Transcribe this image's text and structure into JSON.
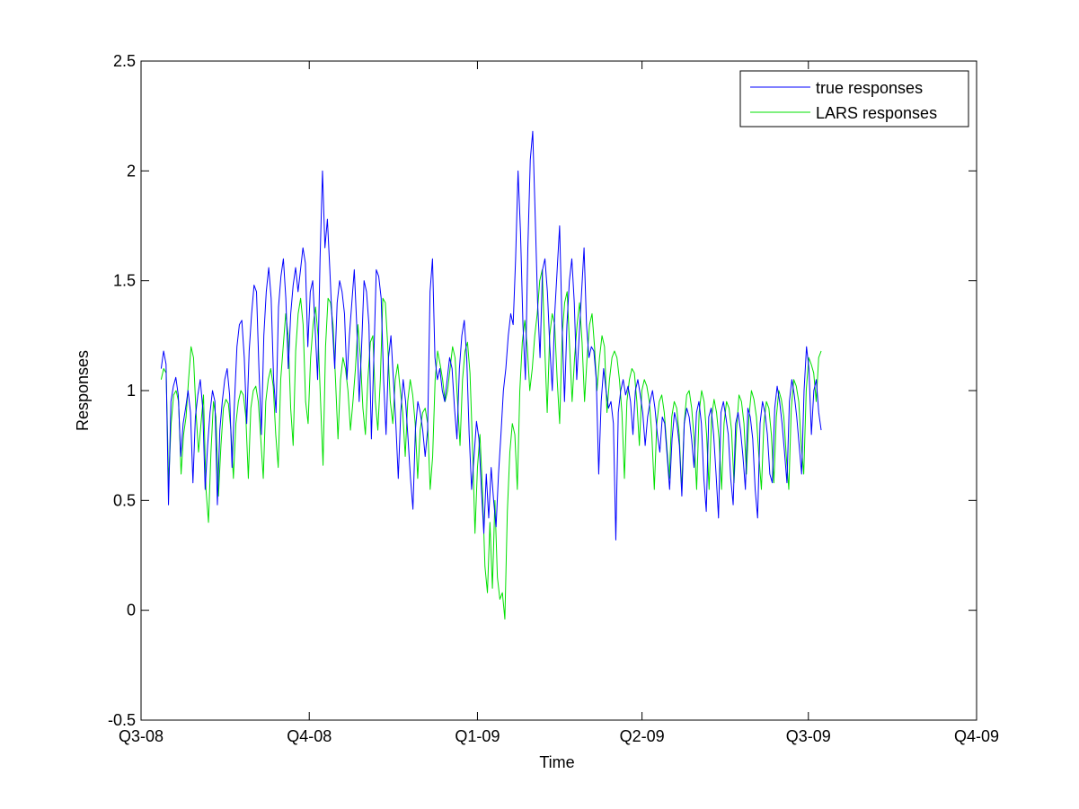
{
  "chart_data": {
    "type": "line",
    "title": "",
    "xlabel": "Time",
    "ylabel": "Responses",
    "xlim": [
      "2008-07-01",
      "2009-10-01"
    ],
    "ylim": [
      -0.5,
      2.5
    ],
    "grid": false,
    "legend_position": "top-right",
    "x_ticks": [
      {
        "label": "Q3-08",
        "date": "2008-07-01"
      },
      {
        "label": "Q4-08",
        "date": "2008-10-01"
      },
      {
        "label": "Q1-09",
        "date": "2009-01-01"
      },
      {
        "label": "Q2-09",
        "date": "2009-04-01"
      },
      {
        "label": "Q3-09",
        "date": "2009-07-01"
      },
      {
        "label": "Q4-09",
        "date": "2009-10-01"
      }
    ],
    "y_ticks": [
      "-0.5",
      "0",
      "0.5",
      "1",
      "1.5",
      "2",
      "2.5"
    ],
    "series_start": "2008-07-12",
    "series_end": "2009-07-08",
    "series": [
      {
        "name": "true responses",
        "color": "#0000ff",
        "values": [
          1.1,
          1.18,
          1.12,
          0.48,
          0.95,
          1.02,
          1.06,
          0.98,
          0.7,
          0.85,
          0.92,
          1.0,
          0.9,
          0.58,
          0.88,
          0.98,
          1.05,
          0.92,
          0.55,
          0.75,
          0.9,
          1.0,
          0.95,
          0.48,
          0.82,
          0.95,
          1.05,
          1.1,
          0.98,
          0.65,
          0.95,
          1.2,
          1.3,
          1.32,
          1.15,
          0.85,
          1.18,
          1.35,
          1.48,
          1.45,
          1.1,
          0.8,
          1.25,
          1.45,
          1.56,
          1.42,
          1.05,
          0.9,
          1.38,
          1.52,
          1.6,
          1.42,
          1.1,
          1.35,
          1.48,
          1.56,
          1.45,
          1.55,
          1.65,
          1.58,
          1.2,
          1.45,
          1.5,
          1.28,
          1.05,
          1.6,
          2.0,
          1.65,
          1.78,
          1.55,
          1.3,
          1.1,
          1.4,
          1.5,
          1.45,
          1.35,
          1.05,
          1.25,
          1.4,
          1.55,
          1.3,
          0.95,
          1.2,
          1.5,
          1.45,
          1.3,
          0.78,
          1.15,
          1.55,
          1.52,
          1.42,
          1.05,
          0.8,
          1.15,
          1.25,
          1.05,
          0.85,
          0.6,
          0.9,
          1.05,
          0.95,
          0.78,
          0.6,
          0.46,
          0.82,
          0.95,
          0.9,
          0.82,
          0.7,
          0.82,
          1.45,
          1.6,
          1.15,
          1.05,
          1.1,
          1.0,
          0.95,
          1.05,
          1.15,
          1.1,
          0.92,
          0.78,
          1.1,
          1.25,
          1.32,
          1.15,
          0.8,
          0.55,
          0.7,
          0.86,
          0.78,
          0.55,
          0.35,
          0.62,
          0.42,
          0.65,
          0.5,
          0.38,
          0.62,
          0.8,
          1.0,
          1.1,
          1.25,
          1.35,
          1.3,
          1.6,
          2.0,
          1.72,
          1.3,
          1.05,
          1.65,
          2.05,
          2.18,
          1.8,
          1.4,
          1.15,
          1.55,
          1.6,
          1.45,
          1.2,
          1.0,
          1.35,
          1.55,
          1.75,
          1.3,
          0.95,
          1.3,
          1.5,
          1.6,
          1.4,
          1.05,
          1.25,
          1.45,
          1.65,
          1.3,
          1.15,
          1.2,
          1.18,
          1.05,
          0.62,
          0.95,
          1.1,
          1.0,
          0.92,
          0.95,
          0.85,
          0.32,
          0.9,
          1.0,
          1.05,
          0.98,
          1.02,
          0.95,
          0.8,
          1.0,
          1.05,
          0.98,
          0.9,
          0.75,
          0.88,
          0.95,
          1.0,
          0.92,
          0.8,
          0.72,
          0.88,
          0.85,
          0.7,
          0.55,
          0.78,
          0.9,
          0.85,
          0.75,
          0.52,
          0.85,
          0.92,
          0.88,
          0.78,
          0.65,
          0.9,
          0.95,
          0.85,
          0.6,
          0.45,
          0.88,
          0.92,
          0.8,
          0.62,
          0.42,
          0.9,
          0.95,
          0.88,
          0.8,
          0.6,
          0.48,
          0.85,
          0.9,
          0.82,
          0.7,
          0.55,
          0.92,
          0.88,
          0.78,
          0.55,
          0.42,
          0.85,
          0.95,
          0.9,
          0.8,
          0.62,
          0.58,
          0.92,
          1.02,
          0.95,
          0.85,
          0.72,
          0.58,
          0.95,
          1.05,
          0.98,
          0.88,
          0.75,
          0.62,
          1.0,
          1.2,
          1.1,
          0.8,
          1.0,
          1.05,
          0.9,
          0.82
        ]
      },
      {
        "name": "LARS responses",
        "color": "#00e000",
        "values": [
          1.05,
          1.1,
          1.08,
          0.58,
          0.85,
          0.98,
          1.0,
          0.95,
          0.62,
          0.8,
          0.88,
          1.05,
          1.2,
          1.15,
          0.9,
          0.72,
          0.85,
          0.98,
          0.55,
          0.4,
          0.72,
          0.95,
          0.88,
          0.52,
          0.75,
          0.92,
          0.96,
          0.94,
          0.82,
          0.6,
          0.85,
          0.95,
          1.0,
          0.98,
          0.88,
          0.6,
          0.92,
          1.0,
          1.02,
          0.95,
          0.78,
          0.6,
          0.95,
          1.05,
          1.1,
          1.02,
          0.8,
          0.65,
          1.05,
          1.2,
          1.35,
          1.25,
          0.92,
          0.75,
          1.18,
          1.35,
          1.42,
          1.3,
          0.95,
          0.85,
          1.15,
          1.3,
          1.38,
          1.25,
          0.95,
          0.66,
          1.2,
          1.42,
          1.4,
          1.3,
          1.05,
          0.78,
          1.05,
          1.15,
          1.1,
          1.0,
          0.82,
          0.95,
          1.1,
          1.3,
          1.15,
          0.92,
          0.8,
          1.05,
          1.22,
          1.25,
          0.95,
          0.82,
          1.05,
          1.42,
          1.4,
          1.2,
          0.95,
          0.85,
          1.05,
          1.12,
          1.0,
          0.9,
          0.7,
          0.95,
          1.05,
          0.98,
          0.85,
          0.6,
          0.82,
          0.9,
          0.92,
          0.85,
          0.55,
          0.7,
          1.05,
          1.18,
          1.12,
          1.05,
          0.95,
          1.0,
          1.1,
          1.2,
          1.15,
          0.95,
          0.75,
          1.05,
          1.18,
          1.22,
          1.08,
          0.75,
          0.35,
          0.65,
          0.8,
          0.55,
          0.2,
          0.08,
          0.4,
          0.1,
          0.5,
          0.15,
          0.05,
          0.08,
          -0.04,
          0.45,
          0.72,
          0.85,
          0.8,
          0.55,
          1.0,
          1.22,
          1.32,
          1.2,
          1.0,
          1.1,
          1.25,
          1.35,
          1.5,
          1.55,
          1.2,
          0.9,
          1.25,
          1.35,
          1.3,
          1.05,
          0.85,
          1.25,
          1.4,
          1.45,
          1.2,
          0.95,
          1.15,
          1.3,
          1.4,
          1.22,
          0.95,
          1.15,
          1.3,
          1.35,
          1.2,
          1.0,
          1.15,
          1.25,
          1.2,
          0.9,
          1.05,
          1.15,
          1.18,
          1.15,
          1.05,
          0.9,
          0.6,
          0.95,
          1.05,
          1.1,
          1.08,
          0.95,
          0.75,
          1.0,
          1.05,
          1.02,
          0.95,
          0.8,
          0.55,
          0.85,
          0.95,
          0.98,
          0.9,
          0.75,
          0.6,
          0.88,
          0.95,
          0.92,
          0.8,
          0.55,
          0.85,
          0.98,
          1.0,
          0.92,
          0.78,
          0.55,
          0.9,
          1.0,
          0.95,
          0.8,
          0.55,
          0.88,
          0.96,
          0.9,
          0.78,
          0.55,
          0.85,
          0.95,
          0.92,
          0.82,
          0.58,
          0.82,
          0.98,
          0.95,
          0.85,
          0.62,
          0.88,
          1.0,
          0.96,
          0.88,
          0.7,
          0.55,
          0.85,
          0.95,
          0.92,
          0.8,
          0.58,
          0.88,
          1.0,
          0.96,
          0.88,
          0.7,
          0.55,
          0.92,
          1.05,
          1.02,
          0.95,
          0.75,
          0.62,
          1.0,
          1.15,
          1.12,
          1.08,
          0.95,
          1.15,
          1.18
        ]
      }
    ]
  }
}
